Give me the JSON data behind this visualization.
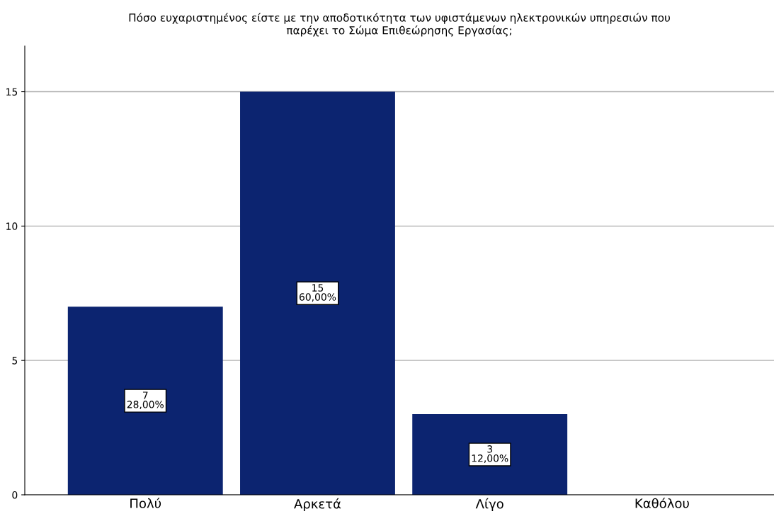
{
  "chart_data": {
    "type": "bar",
    "title": "Πόσο ευχαριστημένος είστε με την αποδοτικότητα των υφιστάμενων ηλεκτρονικών υπηρεσιών που\nπαρέχει το Σώμα Επιθεώρησης Εργασίας;",
    "categories": [
      "Πολύ",
      "Αρκετά",
      "Λίγο",
      "Καθόλου"
    ],
    "values": [
      7,
      15,
      3,
      0
    ],
    "value_labels": [
      "7\n28,00%",
      "15\n60,00%",
      "3\n12,00%",
      null
    ],
    "color": "#0c2470",
    "ylim": [
      0,
      16.7
    ],
    "yticks": [
      0,
      5,
      10,
      15
    ],
    "grid": "y"
  }
}
